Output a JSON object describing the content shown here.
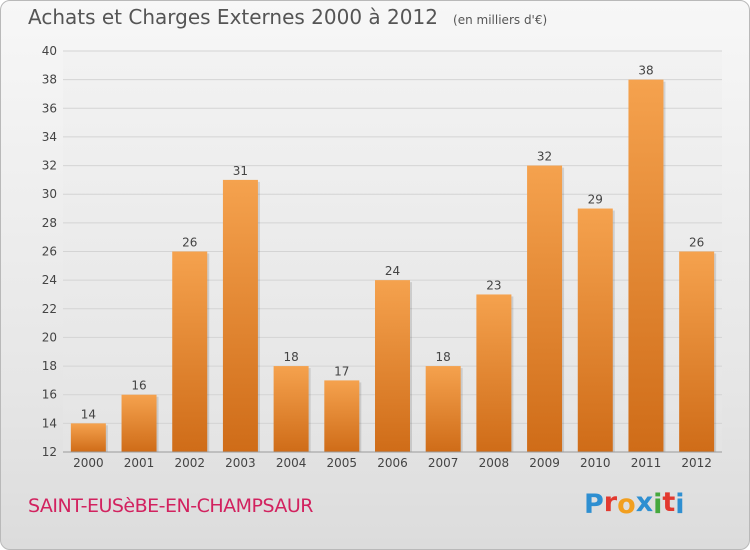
{
  "header": {
    "title": "Achats et Charges Externes 2000 à 2012",
    "subtitle": "(en milliers d'€)"
  },
  "footer": {
    "city": "SAINT-EUSèBE-EN-CHAMPSAUR",
    "logo_letters": [
      "P",
      "r",
      "o",
      "x",
      "i",
      "t",
      "i"
    ],
    "logo_colors": [
      "#2e8fd1",
      "#e2392f",
      "#f29f1f",
      "#2e8fd1",
      "#46a83e",
      "#e2392f",
      "#2e8fd1"
    ]
  },
  "chart_data": {
    "type": "bar",
    "title": "Achats et Charges Externes 2000 à 2012",
    "subtitle": "(en milliers d'€)",
    "categories": [
      "2000",
      "2001",
      "2002",
      "2003",
      "2004",
      "2005",
      "2006",
      "2007",
      "2008",
      "2009",
      "2010",
      "2011",
      "2012"
    ],
    "values": [
      14,
      16,
      26,
      31,
      18,
      17,
      24,
      18,
      23,
      32,
      29,
      38,
      26
    ],
    "ylim": [
      12,
      40
    ],
    "yticks": [
      12,
      14,
      16,
      18,
      20,
      22,
      24,
      26,
      28,
      30,
      32,
      34,
      36,
      38,
      40
    ],
    "grid": true,
    "colors": {
      "bar_light": "#f5a24e",
      "bar_dark": "#cf6c18",
      "grid": "#d4d4d4",
      "axis_text": "#444444",
      "value_text": "#444444"
    }
  }
}
